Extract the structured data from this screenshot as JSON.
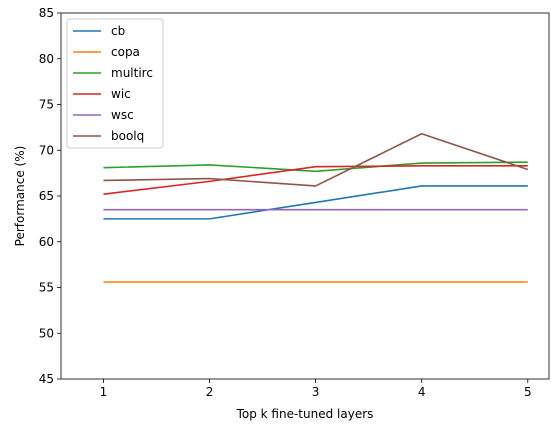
{
  "chart_data": {
    "type": "line",
    "title": "",
    "xlabel": "Top k fine-tuned layers",
    "ylabel": "Performance (%)",
    "x": [
      1,
      2,
      3,
      4,
      5
    ],
    "xticks": [
      "1",
      "2",
      "3",
      "4",
      "5"
    ],
    "yticks": [
      "45",
      "50",
      "55",
      "60",
      "65",
      "70",
      "75",
      "80",
      "85"
    ],
    "ylim": [
      45,
      85
    ],
    "xlim": [
      0.6,
      5.2
    ],
    "grid": false,
    "legend_position": "upper-left",
    "series": [
      {
        "name": "cb",
        "color": "#1f77b4",
        "values": [
          62.5,
          62.5,
          64.3,
          66.1,
          66.1
        ]
      },
      {
        "name": "copa",
        "color": "#ff7f0e",
        "values": [
          55.6,
          55.6,
          55.6,
          55.6,
          55.6
        ]
      },
      {
        "name": "multirc",
        "color": "#2ca02c",
        "values": [
          68.1,
          68.4,
          67.7,
          68.6,
          68.7
        ]
      },
      {
        "name": "wic",
        "color": "#d62728",
        "values": [
          65.2,
          66.6,
          68.2,
          68.3,
          68.3
        ]
      },
      {
        "name": "wsc",
        "color": "#9467bd",
        "values": [
          63.5,
          63.5,
          63.5,
          63.5,
          63.5
        ]
      },
      {
        "name": "boolq",
        "color": "#8c564b",
        "values": [
          66.7,
          66.9,
          66.1,
          71.8,
          67.9
        ]
      }
    ]
  }
}
